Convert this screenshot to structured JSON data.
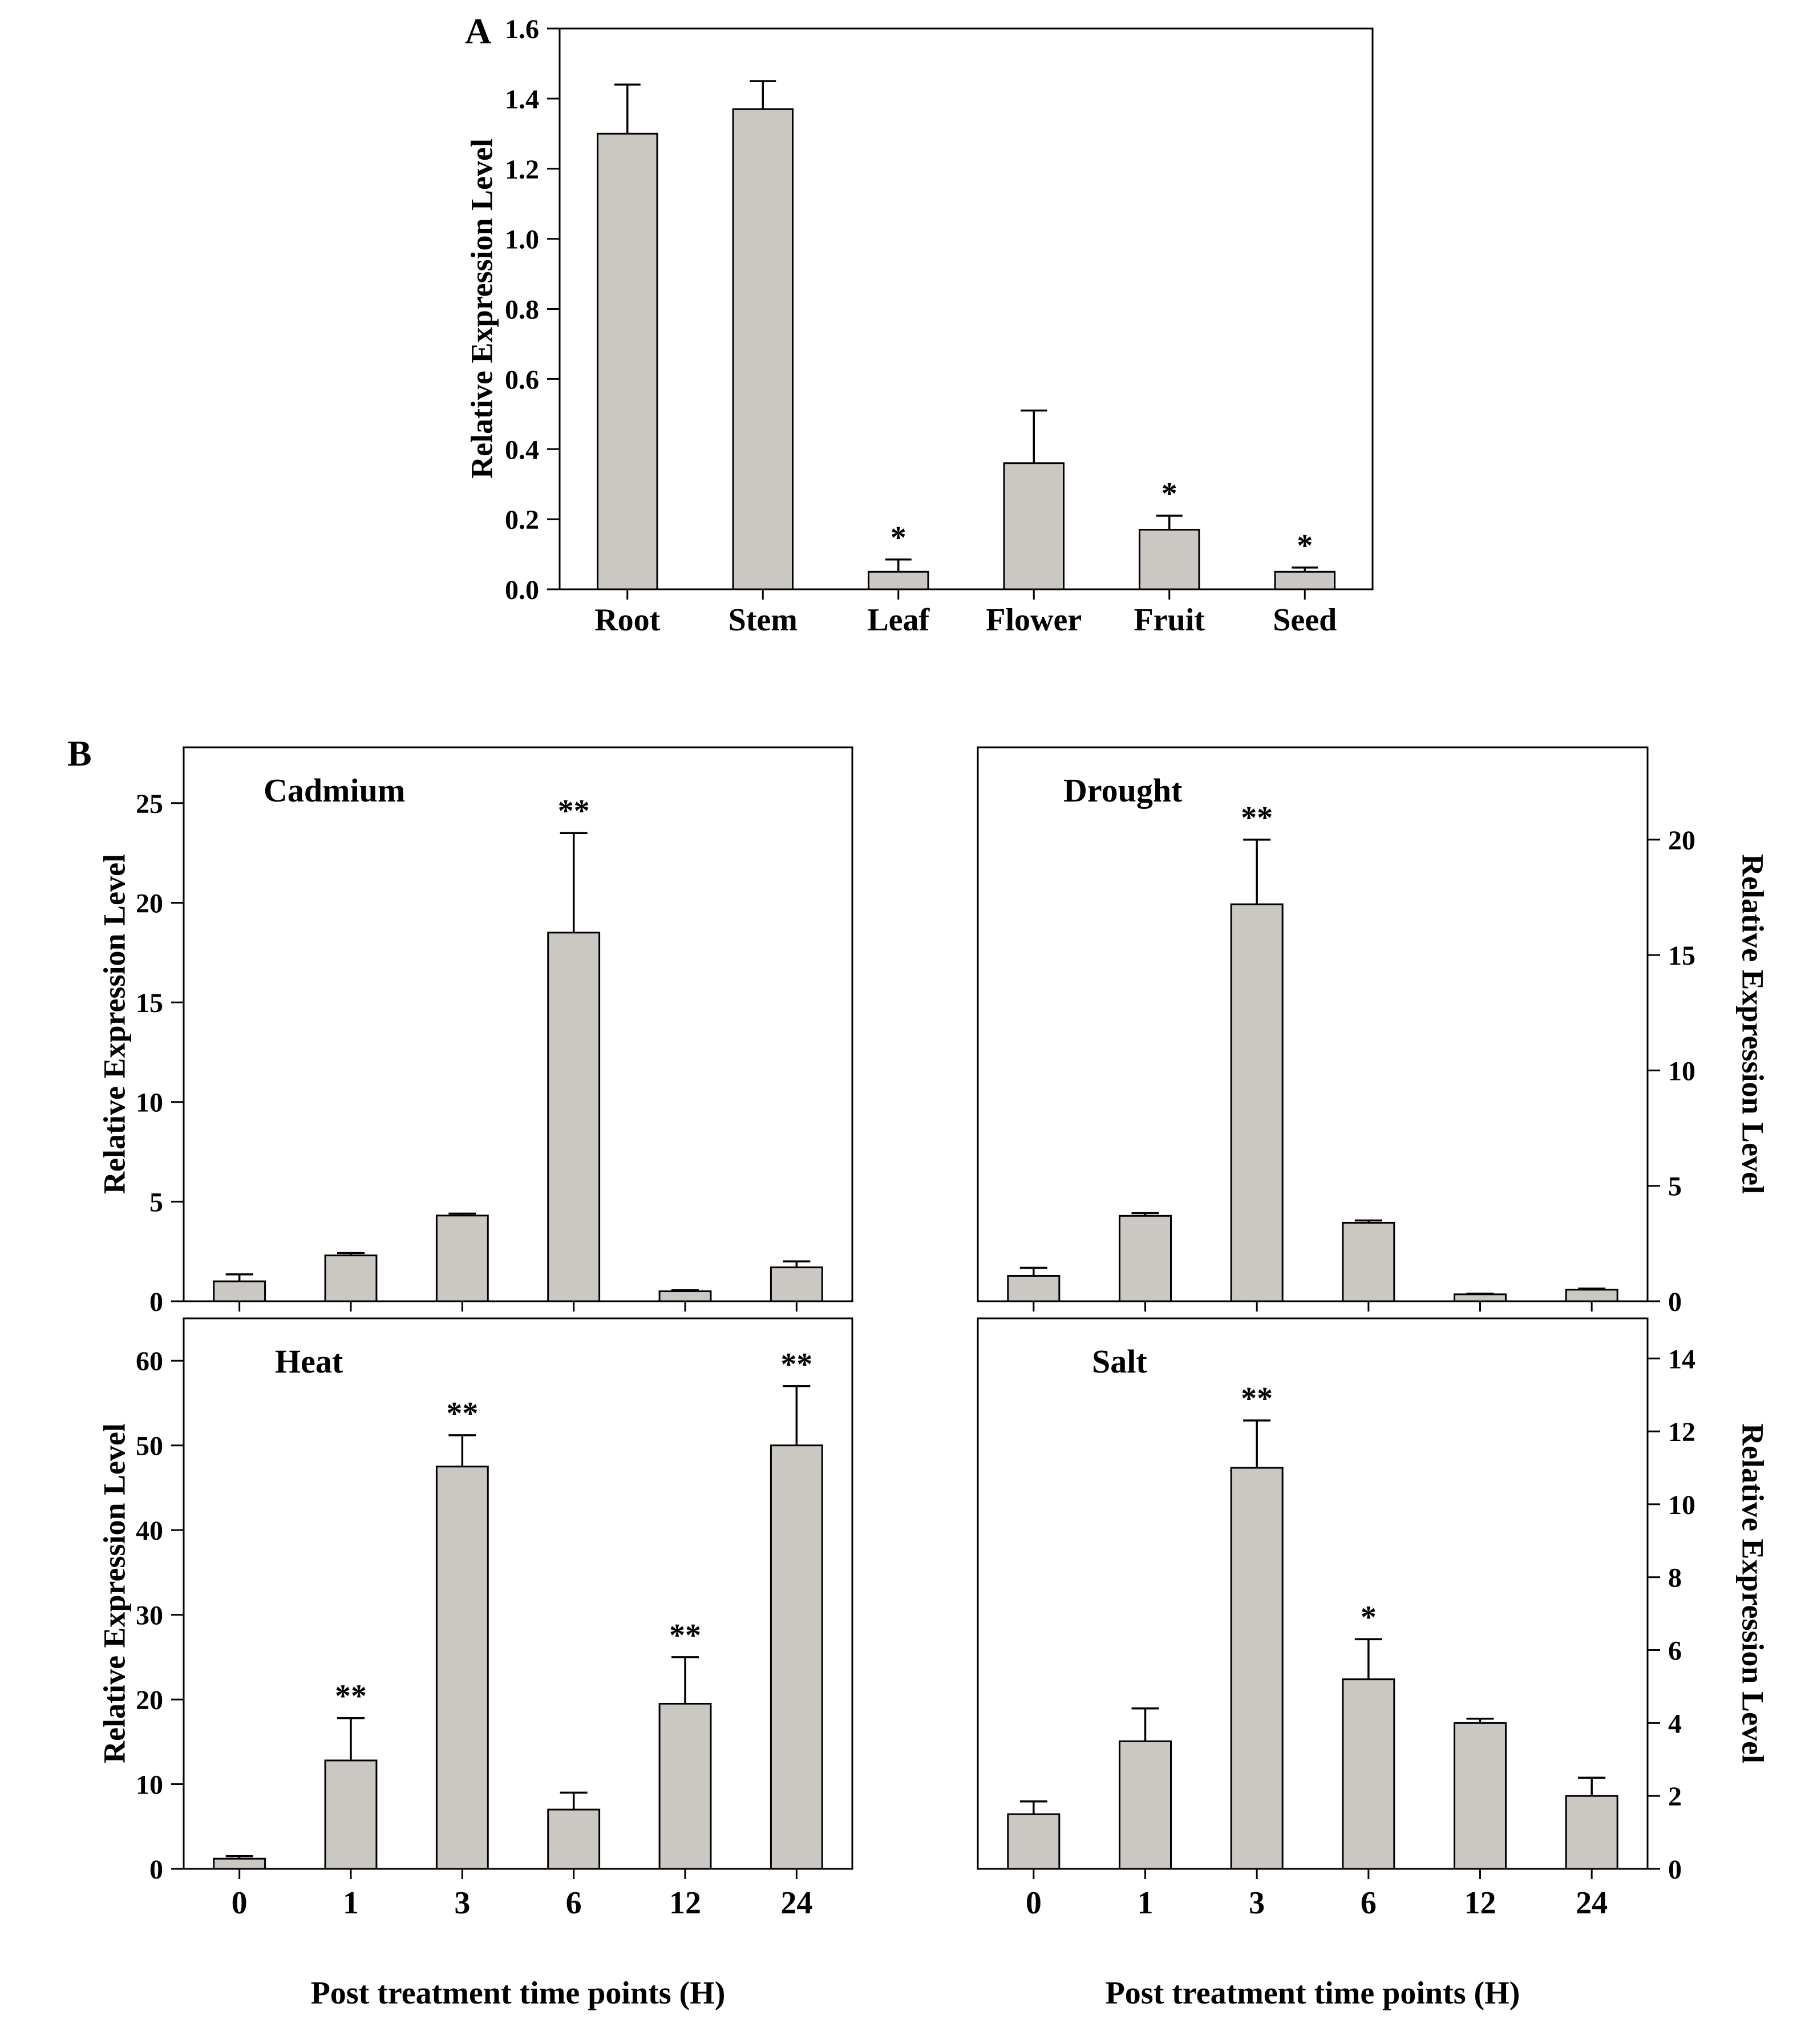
{
  "figure": {
    "panel_a": "A",
    "panel_b": "B",
    "bar_color": "#cbc8c3",
    "axis_color": "#000000"
  },
  "chart_data": [
    {
      "id": "panelA",
      "type": "bar",
      "title": "",
      "ylabel": "Relative Expression Level",
      "xlabel": "",
      "categories": [
        "Root",
        "Stem",
        "Leaf",
        "Flower",
        "Fruit",
        "Seed"
      ],
      "values": [
        1.3,
        1.37,
        0.05,
        0.36,
        0.17,
        0.05
      ],
      "errors": [
        0.14,
        0.08,
        0.035,
        0.15,
        0.04,
        0.012
      ],
      "significance": [
        "",
        "",
        "*",
        "",
        "*",
        "*"
      ],
      "ylim": [
        0,
        1.6
      ],
      "yticks": [
        0.0,
        0.2,
        0.4,
        0.6,
        0.8,
        1.0,
        1.2,
        1.4,
        1.6
      ],
      "tick_decimals": 1,
      "axis_side": "left",
      "show_x_tick_labels": true,
      "grid": false,
      "legend": "none"
    },
    {
      "id": "cadmium",
      "type": "bar",
      "title": "Cadmium",
      "ylabel": "Relative Expression Level",
      "xlabel": "",
      "categories": [
        "0",
        "1",
        "3",
        "6",
        "12",
        "24"
      ],
      "values": [
        1.0,
        2.3,
        4.3,
        18.5,
        0.5,
        1.7
      ],
      "errors": [
        0.35,
        0.12,
        0.1,
        5.0,
        0.05,
        0.3
      ],
      "significance": [
        "",
        "",
        "",
        "**",
        "",
        ""
      ],
      "ylim": [
        0,
        27.8
      ],
      "yticks": [
        0,
        5,
        10,
        15,
        20,
        25
      ],
      "tick_decimals": 0,
      "axis_side": "left",
      "show_x_tick_labels": false,
      "grid": false,
      "legend": "none"
    },
    {
      "id": "drought",
      "type": "bar",
      "title": "Drought",
      "ylabel": "Relative Expression Level",
      "xlabel": "",
      "categories": [
        "0",
        "1",
        "3",
        "6",
        "12",
        "24"
      ],
      "values": [
        1.1,
        3.7,
        17.2,
        3.4,
        0.3,
        0.5
      ],
      "errors": [
        0.35,
        0.12,
        2.8,
        0.1,
        0.03,
        0.05
      ],
      "significance": [
        "",
        "",
        "**",
        "",
        "",
        ""
      ],
      "ylim": [
        0,
        24
      ],
      "yticks": [
        0,
        5,
        10,
        15,
        20
      ],
      "tick_decimals": 0,
      "axis_side": "right",
      "show_x_tick_labels": false,
      "grid": false,
      "legend": "none"
    },
    {
      "id": "heat",
      "type": "bar",
      "title": "Heat",
      "ylabel": "Relative Expression Level",
      "xlabel": "Post treatment time points (H)",
      "categories": [
        "0",
        "1",
        "3",
        "6",
        "12",
        "24"
      ],
      "values": [
        1.2,
        12.8,
        47.5,
        7.0,
        19.5,
        50.0
      ],
      "errors": [
        0.3,
        5.0,
        3.7,
        2.0,
        5.5,
        7.0
      ],
      "significance": [
        "",
        "**",
        "**",
        "",
        "**",
        "**"
      ],
      "ylim": [
        0,
        65
      ],
      "yticks": [
        0,
        10,
        20,
        30,
        40,
        50,
        60
      ],
      "tick_decimals": 0,
      "axis_side": "left",
      "show_x_tick_labels": true,
      "grid": false,
      "legend": "none"
    },
    {
      "id": "salt",
      "type": "bar",
      "title": "Salt",
      "ylabel": "Relative Expression Level",
      "xlabel": "Post treatment time points (H)",
      "categories": [
        "0",
        "1",
        "3",
        "6",
        "12",
        "24"
      ],
      "values": [
        1.5,
        3.5,
        11.0,
        5.2,
        4.0,
        2.0
      ],
      "errors": [
        0.35,
        0.9,
        1.3,
        1.1,
        0.12,
        0.5
      ],
      "significance": [
        "",
        "",
        "**",
        "*",
        "",
        ""
      ],
      "ylim": [
        0,
        15.1
      ],
      "yticks": [
        0,
        2,
        4,
        6,
        8,
        10,
        12,
        14
      ],
      "tick_decimals": 0,
      "axis_side": "right",
      "show_x_tick_labels": true,
      "grid": false,
      "legend": "none"
    }
  ]
}
